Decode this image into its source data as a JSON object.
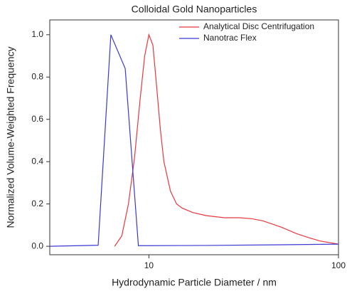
{
  "chart_data": {
    "type": "line",
    "title": "Colloidal Gold Nanoparticles",
    "xlabel": "Hydrodynamic Particle Diameter / nm",
    "ylabel": "Normalized Volume-Weighted Frequency",
    "xscale": "log",
    "xlim": [
      3,
      100
    ],
    "xticks": [
      10,
      100
    ],
    "ylim": [
      -0.04,
      1.07
    ],
    "yticks": [
      {
        "value": 0,
        "label": "0.0"
      },
      0.2,
      0.4,
      0.6,
      0.8,
      {
        "value": 1,
        "label": "1.0"
      }
    ],
    "legend": "upper right",
    "series": [
      {
        "name": "Analytical Disc Centrifugation",
        "color": "#e8383d",
        "x": [
          6.6,
          7.2,
          7.8,
          8.4,
          9.0,
          9.5,
          10,
          10.5,
          11,
          11.5,
          12,
          13,
          14,
          15,
          17,
          20,
          25,
          30,
          35,
          40,
          50,
          60,
          70,
          80,
          100
        ],
        "values": [
          0,
          0.05,
          0.2,
          0.42,
          0.7,
          0.9,
          1.0,
          0.95,
          0.75,
          0.55,
          0.4,
          0.26,
          0.2,
          0.18,
          0.16,
          0.145,
          0.135,
          0.135,
          0.13,
          0.12,
          0.09,
          0.06,
          0.04,
          0.025,
          0.01
        ]
      },
      {
        "name": "Nanotrac Flex",
        "color": "#3a3ad0",
        "x": [
          3,
          5.4,
          6.3,
          7.5,
          8.8,
          10,
          20,
          50,
          100
        ],
        "values": [
          0,
          0.005,
          1.0,
          0.84,
          0.003,
          0.003,
          0.004,
          0.007,
          0.01
        ]
      }
    ]
  }
}
